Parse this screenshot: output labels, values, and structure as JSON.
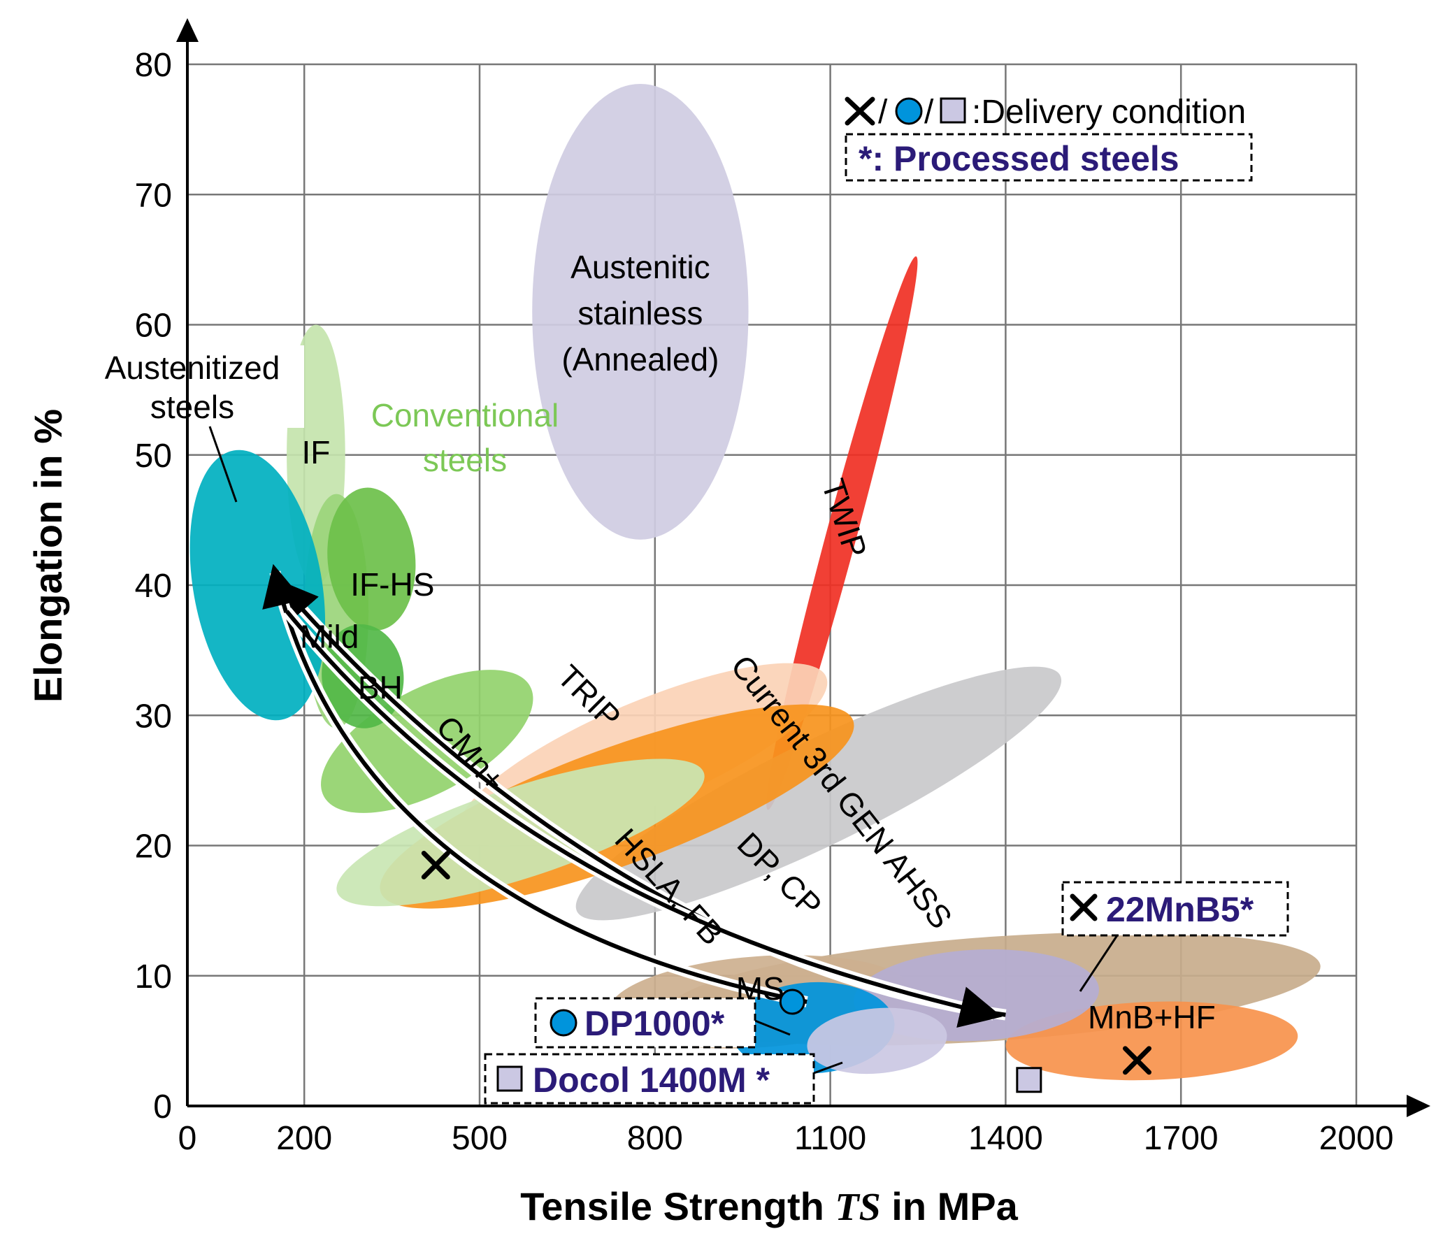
{
  "chart_data": {
    "type": "scatter",
    "xlabel": {
      "prefix": "Tensile Strength ",
      "symbol": "TS",
      "suffix": " in MPa"
    },
    "ylabel": "Elongation in %",
    "xlim": [
      0,
      2000
    ],
    "ylim": [
      0,
      80
    ],
    "xticks": [
      0,
      200,
      500,
      800,
      1100,
      1400,
      1700,
      2000
    ],
    "yticks": [
      0,
      10,
      20,
      30,
      40,
      50,
      60,
      70,
      80
    ],
    "grid": true,
    "legend": {
      "symbols": "×/●/■",
      "symbol_sep": "/",
      "symbol_text": ":Delivery condition",
      "processed_note": "*: Processed steels",
      "placement": "top-right"
    },
    "regions": [
      {
        "id": "mnb-hf-outer",
        "label": "",
        "color": "#c8ad8c",
        "cx": 1380,
        "cy": 9,
        "rx": 560,
        "ry": 4,
        "angle": -4
      },
      {
        "id": "mnb-hf",
        "label": "MnB+HF",
        "color": "#f7934c",
        "cx": 1650,
        "cy": 5,
        "rx": 250,
        "ry": 3,
        "angle": -2
      },
      {
        "id": "twip",
        "label": "TWIP",
        "color": "#f03024",
        "cx": 1120,
        "cy": 44,
        "rx": 26,
        "ry": 22,
        "angle": 15
      },
      {
        "id": "austenitic-stainless",
        "label": [
          "Austenitic",
          "stainless",
          "(Annealed)"
        ],
        "color": "#cfcce2",
        "cx": 775,
        "cy": 61,
        "rx": 185,
        "ry": 17.5,
        "angle": 0
      },
      {
        "id": "current-3rd-gen-ahss",
        "label": "Current 3rd GEN AHSS",
        "color": "#c9c9cb",
        "cx": 1080,
        "cy": 24,
        "rx": 460,
        "ry": 4,
        "angle": -26
      },
      {
        "id": "trip",
        "label": "TRIP",
        "color": "#fbd2b6",
        "cx": 780,
        "cy": 27,
        "rx": 340,
        "ry": 4,
        "angle": -23
      },
      {
        "id": "dp-cp",
        "label": "DP, CP",
        "color": "#f7941d",
        "cx": 735,
        "cy": 23,
        "rx": 430,
        "ry": 4.5,
        "angle": -20
      },
      {
        "id": "hsla-fb",
        "label": "HSLA, FB",
        "color": "#c9e6b3",
        "cx": 570,
        "cy": 21,
        "rx": 330,
        "ry": 3.5,
        "angle": -18
      },
      {
        "id": "cmn-plus",
        "label": "CMn+",
        "color": "#92d36d",
        "cx": 410,
        "cy": 28,
        "rx": 200,
        "ry": 4,
        "angle": -28
      },
      {
        "id": "if",
        "label": "IF",
        "color": "#c4e4ad",
        "cx": 220,
        "cy": 50,
        "rx": 50,
        "ry": 10,
        "angle": 0
      },
      {
        "id": "mild",
        "label": "Mild",
        "color": "#9bd57b",
        "cx": 255,
        "cy": 38,
        "rx": 55,
        "ry": 9,
        "angle": 0
      },
      {
        "id": "if-hs",
        "label": "IF-HS",
        "color": "#6cc04a",
        "cx": 315,
        "cy": 42,
        "rx": 75,
        "ry": 5.5,
        "angle": -5
      },
      {
        "id": "bh",
        "label": "BH",
        "color": "#52b848",
        "cx": 300,
        "cy": 33,
        "rx": 70,
        "ry": 4,
        "angle": -5
      },
      {
        "id": "ms",
        "label": "MS",
        "color": "#cdb08f",
        "cx": 980,
        "cy": 8,
        "rx": 260,
        "ry": 3.5,
        "angle": -4
      },
      {
        "id": "austenitized-steels",
        "label": [
          "Austenitized",
          "steels"
        ],
        "color": "#00b0c0",
        "cx": 120,
        "cy": 40,
        "rx": 110,
        "ry": 10.5,
        "angle": -10
      },
      {
        "id": "mnb-processed",
        "label": "",
        "color": "#b5aed3",
        "cx": 1350,
        "cy": 8.5,
        "rx": 210,
        "ry": 3.5,
        "angle": -3
      },
      {
        "id": "dp1000-processed",
        "label": "",
        "color": "#0094dc",
        "cx": 1070,
        "cy": 6,
        "rx": 140,
        "ry": 3.5,
        "angle": -3
      },
      {
        "id": "docol-processed",
        "label": "",
        "color": "#cbc8e3",
        "cx": 1180,
        "cy": 5,
        "rx": 120,
        "ry": 2.5,
        "angle": -5
      }
    ],
    "points": [
      {
        "name": "",
        "x": 425,
        "y": 18.5,
        "marker": "x"
      },
      {
        "name": "",
        "x": 1035,
        "y": 8,
        "marker": "circle"
      },
      {
        "name": "",
        "x": 1440,
        "y": 2,
        "marker": "square"
      },
      {
        "name": "",
        "x": 1625,
        "y": 3.5,
        "marker": "x"
      }
    ],
    "processed_labels": [
      {
        "id": "22mnb5",
        "marker": "x",
        "text": "22MnB5*"
      },
      {
        "id": "dp1000",
        "marker": "circle",
        "text": "DP1000*"
      },
      {
        "id": "docol",
        "marker": "square",
        "text": "Docol 1400M *"
      }
    ],
    "green_group_label": [
      "Conventional",
      "steels"
    ]
  }
}
